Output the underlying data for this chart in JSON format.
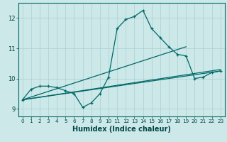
{
  "xlabel": "Humidex (Indice chaleur)",
  "xlim": [
    -0.5,
    23.5
  ],
  "ylim": [
    8.75,
    12.5
  ],
  "xticks": [
    0,
    1,
    2,
    3,
    4,
    5,
    6,
    7,
    8,
    9,
    10,
    11,
    12,
    13,
    14,
    15,
    16,
    17,
    18,
    19,
    20,
    21,
    22,
    23
  ],
  "yticks": [
    9,
    10,
    11,
    12
  ],
  "background_color": "#cce8e8",
  "grid_color": "#aad0d0",
  "line_color": "#006868",
  "main_line": {
    "x": [
      0,
      1,
      2,
      3,
      4,
      5,
      6,
      7,
      8,
      9,
      10,
      11,
      12,
      13,
      14,
      15,
      16,
      17,
      18,
      19,
      20,
      21,
      22,
      23
    ],
    "y": [
      9.3,
      9.65,
      9.75,
      9.75,
      9.7,
      9.6,
      9.5,
      9.05,
      9.2,
      9.5,
      10.05,
      11.65,
      11.95,
      12.05,
      12.25,
      11.65,
      11.35,
      11.05,
      10.8,
      10.75,
      10.0,
      10.05,
      10.2,
      10.25
    ]
  },
  "straight_lines": [
    {
      "x0": 0,
      "y0": 9.3,
      "x1": 23,
      "y1": 10.25
    },
    {
      "x0": 0,
      "y0": 9.3,
      "x1": 23,
      "y1": 10.3
    },
    {
      "x0": 0,
      "y0": 9.3,
      "x1": 19,
      "y1": 11.05
    }
  ]
}
